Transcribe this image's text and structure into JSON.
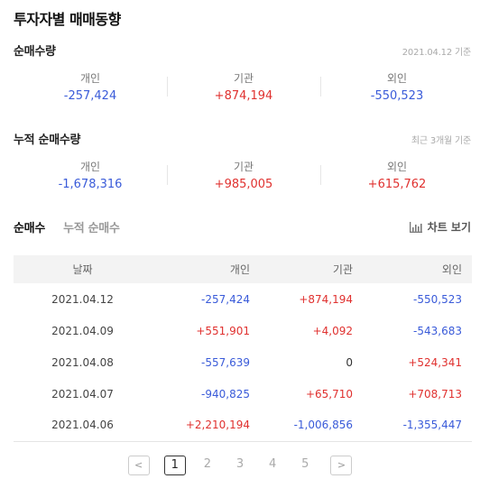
{
  "title": "투자자별 매매동향",
  "net_volume": {
    "title": "순매수량",
    "note": "2021.04.12 기준",
    "stats": [
      {
        "label": "개인",
        "value": "-257,424",
        "sign": "neg"
      },
      {
        "label": "기관",
        "value": "+874,194",
        "sign": "pos"
      },
      {
        "label": "외인",
        "value": "-550,523",
        "sign": "neg"
      }
    ]
  },
  "cumulative": {
    "title": "누적 순매수량",
    "note": "최근 3개월 기준",
    "stats": [
      {
        "label": "개인",
        "value": "-1,678,316",
        "sign": "neg"
      },
      {
        "label": "기관",
        "value": "+985,005",
        "sign": "pos"
      },
      {
        "label": "외인",
        "value": "+615,762",
        "sign": "pos"
      }
    ]
  },
  "tabs": [
    {
      "label": "순매수",
      "active": true
    },
    {
      "label": "누적 순매수",
      "active": false
    }
  ],
  "chart_button": {
    "label": "차트 보기",
    "icon": "bar-chart-icon"
  },
  "table": {
    "headers": [
      "날짜",
      "개인",
      "기관",
      "외인"
    ],
    "rows": [
      [
        "2021.04.12",
        "-257,424",
        "+874,194",
        "-550,523"
      ],
      [
        "2021.04.09",
        "+551,901",
        "+4,092",
        "-543,683"
      ],
      [
        "2021.04.08",
        "-557,639",
        "0",
        "+524,341"
      ],
      [
        "2021.04.07",
        "-940,825",
        "+65,710",
        "+708,713"
      ],
      [
        "2021.04.06",
        "+2,210,194",
        "-1,006,856",
        "-1,355,447"
      ]
    ]
  },
  "pagination": {
    "prev": "<",
    "next": ">",
    "pages": [
      "1",
      "2",
      "3",
      "4",
      "5"
    ],
    "current": "1"
  },
  "colors": {
    "negative": "#3a5bd9",
    "positive": "#e0312f"
  }
}
